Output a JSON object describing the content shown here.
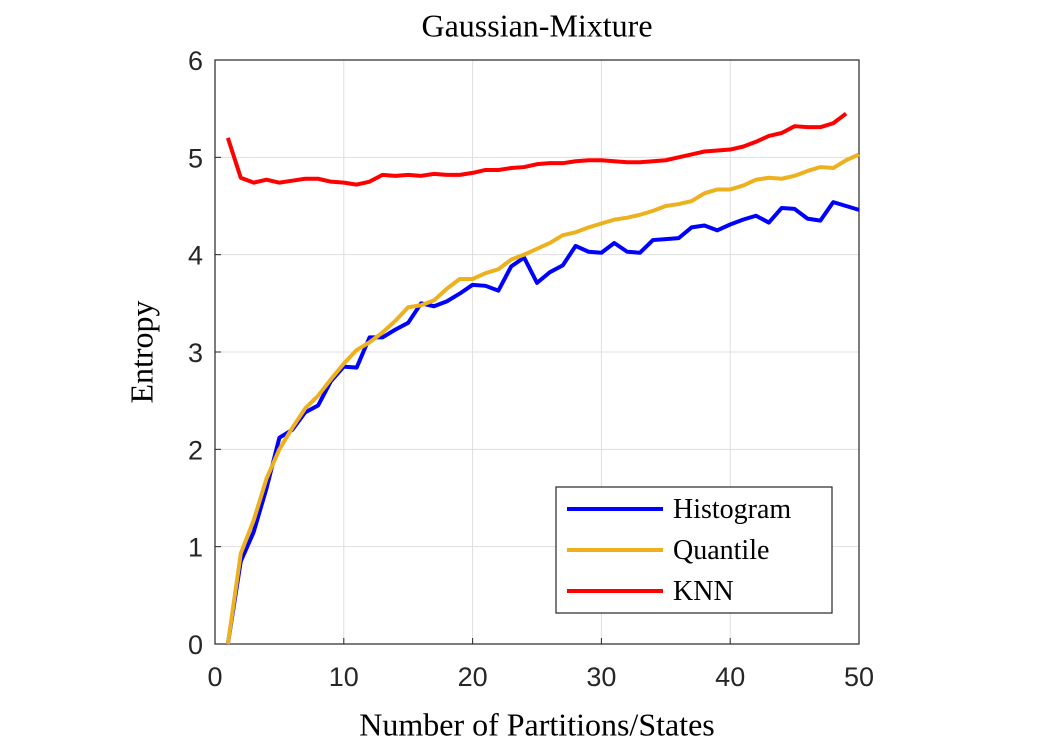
{
  "chart_data": {
    "type": "line",
    "title": "Gaussian-Mixture",
    "x_label": "Number of Partitions/States",
    "y_label": "Entropy",
    "x": [
      1,
      2,
      3,
      4,
      5,
      6,
      7,
      8,
      9,
      10,
      11,
      12,
      13,
      14,
      15,
      16,
      17,
      18,
      19,
      20,
      21,
      22,
      23,
      24,
      25,
      26,
      27,
      28,
      29,
      30,
      31,
      32,
      33,
      34,
      35,
      36,
      37,
      38,
      39,
      40,
      41,
      42,
      43,
      44,
      45,
      46,
      47,
      48,
      49,
      50
    ],
    "series": [
      {
        "name": "Histogram",
        "color": "#0000ff",
        "values": [
          0,
          0.85,
          1.15,
          1.6,
          2.12,
          2.2,
          2.38,
          2.45,
          2.7,
          2.85,
          2.84,
          3.15,
          3.15,
          3.23,
          3.3,
          3.5,
          3.47,
          3.52,
          3.6,
          3.69,
          3.68,
          3.63,
          3.88,
          3.97,
          3.71,
          3.82,
          3.89,
          4.09,
          4.03,
          4.02,
          4.12,
          4.03,
          4.02,
          4.15,
          4.16,
          4.17,
          4.28,
          4.3,
          4.25,
          4.31,
          4.36,
          4.4,
          4.33,
          4.48,
          4.47,
          4.37,
          4.35,
          4.54,
          4.5,
          4.46
        ]
      },
      {
        "name": "Quantile",
        "color": "#edb120",
        "values": [
          0,
          0.93,
          1.27,
          1.7,
          2.0,
          2.22,
          2.42,
          2.55,
          2.72,
          2.88,
          3.02,
          3.1,
          3.2,
          3.32,
          3.46,
          3.48,
          3.53,
          3.65,
          3.75,
          3.75,
          3.81,
          3.85,
          3.95,
          4.0,
          4.06,
          4.12,
          4.2,
          4.23,
          4.28,
          4.32,
          4.36,
          4.38,
          4.41,
          4.45,
          4.5,
          4.52,
          4.55,
          4.63,
          4.67,
          4.67,
          4.71,
          4.77,
          4.79,
          4.78,
          4.81,
          4.86,
          4.9,
          4.89,
          4.97,
          5.03
        ]
      },
      {
        "name": "KNN",
        "color": "#ff0000",
        "values": [
          5.2,
          4.79,
          4.74,
          4.77,
          4.74,
          4.76,
          4.78,
          4.78,
          4.75,
          4.74,
          4.72,
          4.75,
          4.82,
          4.81,
          4.82,
          4.81,
          4.83,
          4.82,
          4.82,
          4.84,
          4.87,
          4.87,
          4.89,
          4.9,
          4.93,
          4.94,
          4.94,
          4.96,
          4.97,
          4.97,
          4.96,
          4.95,
          4.95,
          4.96,
          4.97,
          5.0,
          5.03,
          5.06,
          5.07,
          5.08,
          5.11,
          5.16,
          5.22,
          5.25,
          5.32,
          5.31,
          5.31,
          5.35,
          5.45,
          null
        ]
      }
    ],
    "xlim": [
      0,
      50
    ],
    "xticks": [
      0,
      10,
      20,
      30,
      40,
      50
    ],
    "ylim": [
      0,
      6
    ],
    "yticks": [
      0,
      1,
      2,
      3,
      4,
      5,
      6
    ],
    "grid": true,
    "legend": "lower right"
  }
}
